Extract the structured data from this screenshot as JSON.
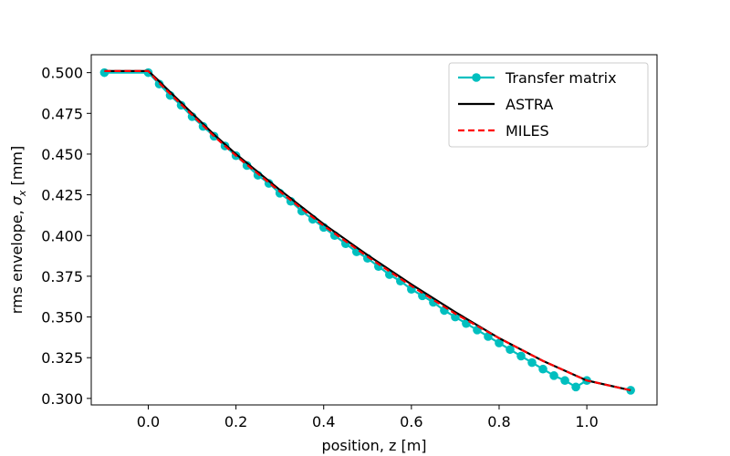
{
  "chart_data": {
    "type": "line",
    "xlabel": "position, z [m]",
    "ylabel_main": "rms envelope, ",
    "ylabel_symbol": "σ",
    "ylabel_sub": "x",
    "ylabel_unit": " [mm]",
    "xlim": [
      -0.13,
      1.16
    ],
    "ylim": [
      0.296,
      0.511
    ],
    "xticks": [
      0.0,
      0.2,
      0.4,
      0.6,
      0.8,
      1.0
    ],
    "xtick_labels": [
      "0.0",
      "0.2",
      "0.4",
      "0.6",
      "0.8",
      "1.0"
    ],
    "yticks": [
      0.3,
      0.325,
      0.35,
      0.375,
      0.4,
      0.425,
      0.45,
      0.475,
      0.5
    ],
    "ytick_labels": [
      "0.300",
      "0.325",
      "0.350",
      "0.375",
      "0.400",
      "0.425",
      "0.450",
      "0.475",
      "0.500"
    ],
    "grid": false,
    "legend_position": "top-right",
    "series": [
      {
        "name": "Transfer matrix",
        "color": "#00bfbf",
        "style": "solid-markers",
        "x": [
          -0.1,
          0.0,
          0.025,
          0.05,
          0.075,
          0.1,
          0.125,
          0.15,
          0.175,
          0.2,
          0.225,
          0.25,
          0.275,
          0.3,
          0.325,
          0.35,
          0.375,
          0.4,
          0.425,
          0.45,
          0.475,
          0.5,
          0.525,
          0.55,
          0.575,
          0.6,
          0.625,
          0.65,
          0.675,
          0.7,
          0.725,
          0.75,
          0.775,
          0.8,
          0.825,
          0.85,
          0.875,
          0.9,
          0.925,
          0.95,
          0.975,
          1.0,
          1.1
        ],
        "y": [
          0.5,
          0.5,
          0.493,
          0.486,
          0.48,
          0.473,
          0.467,
          0.461,
          0.455,
          0.449,
          0.443,
          0.437,
          0.432,
          0.426,
          0.421,
          0.415,
          0.41,
          0.405,
          0.4,
          0.395,
          0.39,
          0.386,
          0.381,
          0.376,
          0.372,
          0.367,
          0.363,
          0.359,
          0.354,
          0.35,
          0.346,
          0.342,
          0.338,
          0.334,
          0.33,
          0.326,
          0.322,
          0.318,
          0.314,
          0.311,
          0.307,
          0.311,
          0.305
        ]
      },
      {
        "name": "ASTRA",
        "color": "#000000",
        "style": "solid",
        "x": [
          -0.1,
          0.0,
          0.02,
          0.05,
          0.1,
          0.15,
          0.2,
          0.3,
          0.4,
          0.5,
          0.6,
          0.7,
          0.8,
          0.9,
          1.0,
          1.1
        ],
        "y": [
          0.501,
          0.501,
          0.496,
          0.488,
          0.475,
          0.462,
          0.45,
          0.428,
          0.407,
          0.388,
          0.37,
          0.353,
          0.337,
          0.323,
          0.311,
          0.305
        ]
      },
      {
        "name": "MILES",
        "color": "#ff0000",
        "style": "dashed",
        "x": [
          -0.1,
          0.0,
          0.02,
          0.05,
          0.1,
          0.15,
          0.2,
          0.3,
          0.4,
          0.5,
          0.6,
          0.7,
          0.8,
          0.9,
          1.0,
          1.1
        ],
        "y": [
          0.501,
          0.501,
          0.495,
          0.487,
          0.474,
          0.461,
          0.449,
          0.427,
          0.406,
          0.387,
          0.369,
          0.352,
          0.337,
          0.323,
          0.311,
          0.305
        ]
      }
    ]
  }
}
